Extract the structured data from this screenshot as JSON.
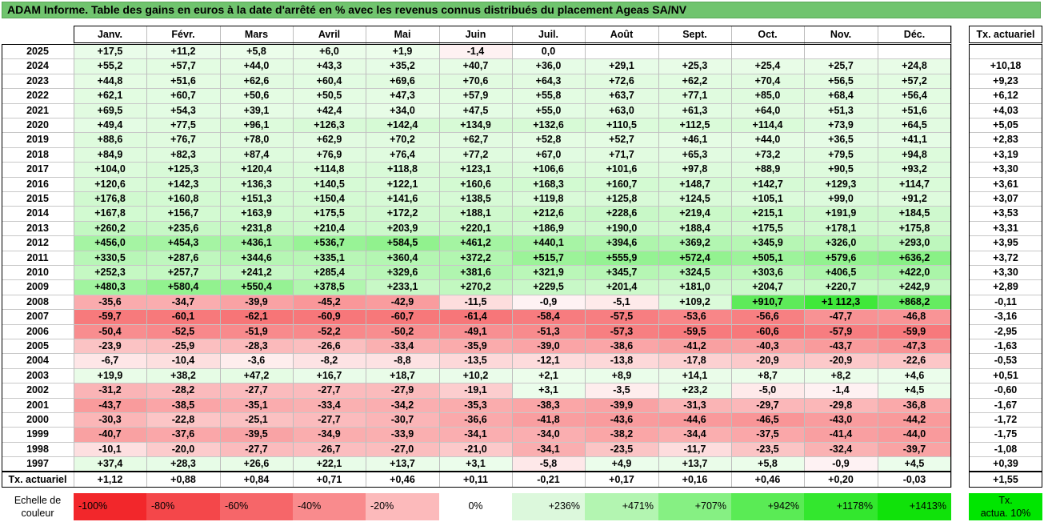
{
  "title": "ADAM Informe. Table des gains en euros à la date d'arrêté en % avec les revenus connus distribués du placement Ageas SA/NV",
  "months": [
    "Janv.",
    "Févr.",
    "Mars",
    "Avril",
    "Mai",
    "Juin",
    "Juil.",
    "Août",
    "Sept.",
    "Oct.",
    "Nov.",
    "Déc."
  ],
  "actuarial_header": "Tx. actuariel",
  "years": [
    "2025",
    "2024",
    "2023",
    "2022",
    "2021",
    "2020",
    "2019",
    "2018",
    "2017",
    "2016",
    "2015",
    "2014",
    "2013",
    "2012",
    "2011",
    "2010",
    "2009",
    "2008",
    "2007",
    "2006",
    "2005",
    "2004",
    "2003",
    "2002",
    "2001",
    "2000",
    "1999",
    "1998",
    "1997"
  ],
  "rows": [
    [
      "+17,5",
      "+11,2",
      "+5,8",
      "+6,0",
      "+1,9",
      "-1,4",
      "0,0",
      "",
      "",
      "",
      "",
      "",
      ""
    ],
    [
      "+55,2",
      "+57,7",
      "+44,0",
      "+43,3",
      "+35,2",
      "+40,7",
      "+36,0",
      "+29,1",
      "+25,3",
      "+25,4",
      "+25,7",
      "+24,8",
      "+10,18"
    ],
    [
      "+44,8",
      "+51,6",
      "+62,6",
      "+60,4",
      "+69,6",
      "+70,6",
      "+64,3",
      "+72,6",
      "+62,2",
      "+70,4",
      "+56,5",
      "+57,2",
      "+9,23"
    ],
    [
      "+62,1",
      "+60,7",
      "+50,6",
      "+50,5",
      "+47,3",
      "+57,9",
      "+55,8",
      "+63,7",
      "+77,1",
      "+85,0",
      "+68,4",
      "+56,4",
      "+6,12"
    ],
    [
      "+69,5",
      "+54,3",
      "+39,1",
      "+42,4",
      "+34,0",
      "+47,5",
      "+55,0",
      "+63,0",
      "+61,3",
      "+64,0",
      "+51,3",
      "+51,6",
      "+4,03"
    ],
    [
      "+49,4",
      "+77,5",
      "+96,1",
      "+126,3",
      "+142,4",
      "+134,9",
      "+132,6",
      "+110,5",
      "+112,5",
      "+114,4",
      "+73,9",
      "+64,5",
      "+5,05"
    ],
    [
      "+88,6",
      "+76,7",
      "+78,0",
      "+62,9",
      "+70,2",
      "+62,7",
      "+52,8",
      "+52,7",
      "+46,1",
      "+44,0",
      "+36,5",
      "+41,1",
      "+2,83"
    ],
    [
      "+84,9",
      "+82,3",
      "+87,4",
      "+76,9",
      "+76,4",
      "+77,2",
      "+67,0",
      "+71,7",
      "+65,3",
      "+73,2",
      "+79,5",
      "+94,8",
      "+3,19"
    ],
    [
      "+104,0",
      "+125,3",
      "+120,4",
      "+114,8",
      "+118,8",
      "+123,1",
      "+106,6",
      "+101,6",
      "+97,8",
      "+88,9",
      "+90,5",
      "+93,2",
      "+3,30"
    ],
    [
      "+120,6",
      "+142,3",
      "+136,3",
      "+140,5",
      "+122,1",
      "+160,6",
      "+168,3",
      "+160,7",
      "+148,7",
      "+142,7",
      "+129,3",
      "+114,7",
      "+3,61"
    ],
    [
      "+176,8",
      "+160,8",
      "+151,3",
      "+150,4",
      "+141,6",
      "+138,5",
      "+119,8",
      "+125,8",
      "+124,5",
      "+105,1",
      "+99,0",
      "+91,2",
      "+3,07"
    ],
    [
      "+167,8",
      "+156,7",
      "+163,9",
      "+175,5",
      "+172,2",
      "+188,1",
      "+212,6",
      "+228,6",
      "+219,4",
      "+215,1",
      "+191,9",
      "+184,5",
      "+3,53"
    ],
    [
      "+260,2",
      "+235,6",
      "+231,8",
      "+210,4",
      "+203,9",
      "+220,1",
      "+186,9",
      "+190,0",
      "+188,4",
      "+175,5",
      "+178,1",
      "+175,8",
      "+3,31"
    ],
    [
      "+456,0",
      "+454,3",
      "+436,1",
      "+536,7",
      "+584,5",
      "+461,2",
      "+440,1",
      "+394,6",
      "+369,2",
      "+345,9",
      "+326,0",
      "+293,0",
      "+3,95"
    ],
    [
      "+330,5",
      "+287,6",
      "+344,6",
      "+335,1",
      "+360,4",
      "+372,2",
      "+515,7",
      "+555,9",
      "+572,4",
      "+505,1",
      "+579,6",
      "+636,2",
      "+3,72"
    ],
    [
      "+252,3",
      "+257,7",
      "+241,2",
      "+285,4",
      "+329,6",
      "+381,6",
      "+321,9",
      "+345,7",
      "+324,5",
      "+303,6",
      "+406,5",
      "+422,0",
      "+3,30"
    ],
    [
      "+480,3",
      "+580,4",
      "+550,4",
      "+378,5",
      "+233,1",
      "+270,2",
      "+229,5",
      "+201,4",
      "+181,0",
      "+204,7",
      "+220,7",
      "+242,9",
      "+2,89"
    ],
    [
      "-35,6",
      "-34,7",
      "-39,9",
      "-45,2",
      "-42,9",
      "-11,5",
      "-0,9",
      "-5,1",
      "+109,2",
      "+910,7",
      "+1 112,3",
      "+868,2",
      "-0,11"
    ],
    [
      "-59,7",
      "-60,1",
      "-62,1",
      "-60,9",
      "-60,7",
      "-61,4",
      "-58,4",
      "-57,5",
      "-53,6",
      "-56,6",
      "-47,7",
      "-46,8",
      "-3,16"
    ],
    [
      "-50,4",
      "-52,5",
      "-51,9",
      "-52,2",
      "-50,2",
      "-49,1",
      "-51,3",
      "-57,3",
      "-59,5",
      "-60,6",
      "-57,9",
      "-59,9",
      "-2,95"
    ],
    [
      "-23,9",
      "-25,9",
      "-28,3",
      "-26,6",
      "-33,4",
      "-35,9",
      "-39,0",
      "-38,6",
      "-41,2",
      "-40,3",
      "-43,7",
      "-47,3",
      "-1,63"
    ],
    [
      "-6,7",
      "-10,4",
      "-3,6",
      "-8,2",
      "-8,8",
      "-13,5",
      "-12,1",
      "-13,8",
      "-17,8",
      "-20,9",
      "-20,9",
      "-22,6",
      "-0,53"
    ],
    [
      "+19,9",
      "+38,2",
      "+47,2",
      "+16,7",
      "+18,7",
      "+10,2",
      "+2,1",
      "+8,9",
      "+14,1",
      "+8,7",
      "+8,2",
      "+4,6",
      "+0,51"
    ],
    [
      "-31,2",
      "-28,2",
      "-27,7",
      "-27,7",
      "-27,9",
      "-19,1",
      "+3,1",
      "-3,5",
      "+23,2",
      "-5,0",
      "-1,4",
      "+4,5",
      "-0,60"
    ],
    [
      "-43,7",
      "-38,5",
      "-35,1",
      "-33,4",
      "-34,2",
      "-35,3",
      "-38,3",
      "-39,9",
      "-31,3",
      "-29,7",
      "-29,8",
      "-36,8",
      "-1,67"
    ],
    [
      "-30,3",
      "-22,8",
      "-25,1",
      "-27,7",
      "-30,7",
      "-36,6",
      "-41,8",
      "-43,6",
      "-44,6",
      "-46,5",
      "-43,0",
      "-44,2",
      "-1,72"
    ],
    [
      "-40,7",
      "-37,6",
      "-39,5",
      "-34,9",
      "-33,9",
      "-34,1",
      "-34,0",
      "-38,2",
      "-34,4",
      "-37,5",
      "-41,4",
      "-44,0",
      "-1,75"
    ],
    [
      "-10,1",
      "-20,0",
      "-27,7",
      "-26,7",
      "-27,0",
      "-21,0",
      "-34,1",
      "-23,5",
      "-11,7",
      "-23,5",
      "-32,4",
      "-39,7",
      "-1,08"
    ],
    [
      "+37,4",
      "+28,3",
      "+26,6",
      "+22,1",
      "+13,7",
      "+3,1",
      "-5,8",
      "+4,9",
      "+13,7",
      "+5,8",
      "-0,9",
      "+4,5",
      "+0,39"
    ]
  ],
  "footer": {
    "label": "Tx. actuariel",
    "values": [
      "+1,12",
      "+0,88",
      "+0,84",
      "+0,71",
      "+0,46",
      "+0,11",
      "-0,21",
      "+0,17",
      "+0,16",
      "+0,46",
      "+0,20",
      "-0,03"
    ],
    "total": "+1,55"
  },
  "scale": {
    "label_line1": "Echelle de",
    "label_line2": "couleur",
    "items": [
      {
        "text": "-100%",
        "color": "#f2272b",
        "align": "left"
      },
      {
        "text": "-80%",
        "color": "#f4474a",
        "align": "left"
      },
      {
        "text": "-60%",
        "color": "#f66669",
        "align": "left"
      },
      {
        "text": "-40%",
        "color": "#f98b8d",
        "align": "left"
      },
      {
        "text": "-20%",
        "color": "#fcbabb",
        "align": "left"
      },
      {
        "text": "0%",
        "color": "#ffffff",
        "align": "center"
      },
      {
        "text": "+236%",
        "color": "#dcf8dc",
        "align": "right"
      },
      {
        "text": "+471%",
        "color": "#b3f5b1",
        "align": "right"
      },
      {
        "text": "+707%",
        "color": "#86f083",
        "align": "right"
      },
      {
        "text": "+942%",
        "color": "#5aeb55",
        "align": "right"
      },
      {
        "text": "+1178%",
        "color": "#33e72e",
        "align": "right"
      },
      {
        "text": "+1413%",
        "color": "#10e20a",
        "align": "right"
      }
    ],
    "actua_line1": "Tx.",
    "actua_line2": "actua. 10%",
    "actua_color": "#00e600"
  },
  "colors": {
    "title_bg": "#70c46e",
    "red_max": "#f2272b",
    "green_max": "#10e20a"
  }
}
